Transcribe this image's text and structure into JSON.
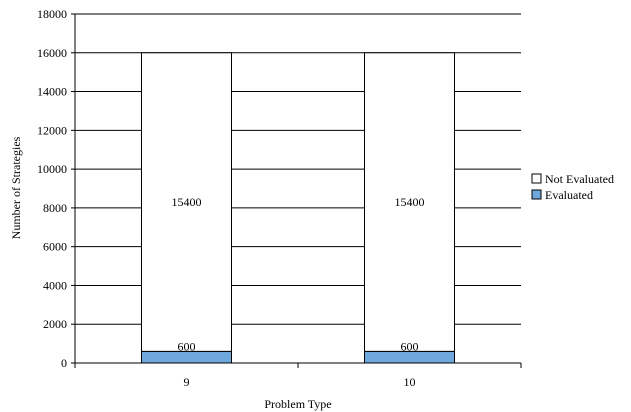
{
  "chart_data": {
    "type": "bar",
    "stacked": true,
    "title": "",
    "xlabel": "Problem Type",
    "ylabel": "Number of Strategies",
    "categories": [
      "9",
      "10"
    ],
    "ylim": [
      0,
      18000
    ],
    "yticks": [
      0,
      2000,
      4000,
      6000,
      8000,
      10000,
      12000,
      14000,
      16000,
      18000
    ],
    "grid": true,
    "legend_position": "right",
    "series": [
      {
        "name": "Evaluated",
        "values": [
          600,
          600
        ],
        "color": "#6fa8dc",
        "labels": [
          "600",
          "600"
        ]
      },
      {
        "name": "Not Evaluated",
        "values": [
          15400,
          15400
        ],
        "color": "#ffffff",
        "labels": [
          "15400",
          "15400"
        ]
      }
    ],
    "legend": [
      "Not Evaluated",
      "Evaluated"
    ]
  }
}
